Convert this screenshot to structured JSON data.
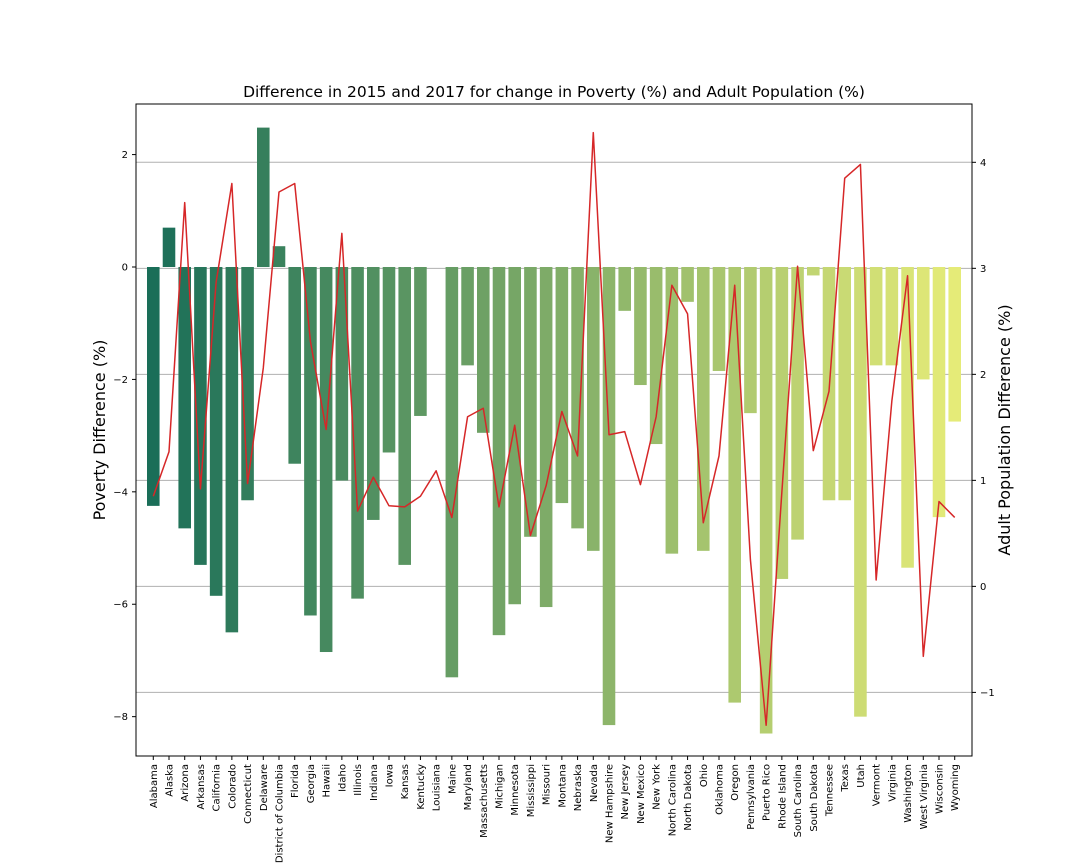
{
  "chart_data": {
    "type": "bar",
    "title": "Difference in 2015 and 2017 for change in Poverty (%) and Adult Population (%)",
    "xlabel": "",
    "ylabel": "Poverty Difference (%)",
    "y2label": "Adult Population Difference (%)",
    "ylim": [
      -8.7,
      2.9
    ],
    "y2lim": [
      -1.6,
      4.55
    ],
    "yticks": [
      -8,
      -6,
      -4,
      -2,
      0,
      2
    ],
    "y2ticks": [
      -1,
      0,
      1,
      2,
      3,
      4
    ],
    "grid": "horizontal lines at right-axis ticks",
    "colors": {
      "bar_start": "#1a6e58",
      "bar_end": "#e5eb78",
      "line": "#d62728",
      "grid": "#b0b0b0"
    },
    "categories": [
      "Alabama",
      "Alaska",
      "Arizona",
      "Arkansas",
      "California",
      "Colorado",
      "Connecticut",
      "Delaware",
      "District of Columbia",
      "Florida",
      "Georgia",
      "Hawaii",
      "Idaho",
      "Illinois",
      "Indiana",
      "Iowa",
      "Kansas",
      "Kentucky",
      "Louisiana",
      "Maine",
      "Maryland",
      "Massachusetts",
      "Michigan",
      "Minnesota",
      "Mississippi",
      "Missouri",
      "Montana",
      "Nebraska",
      "Nevada",
      "New Hampshire",
      "New Jersey",
      "New Mexico",
      "New York",
      "North Carolina",
      "North Dakota",
      "Ohio",
      "Oklahoma",
      "Oregon",
      "Pennsylvania",
      "Puerto Rico",
      "Rhode Island",
      "South Carolina",
      "South Dakota",
      "Tennessee",
      "Texas",
      "Utah",
      "Vermont",
      "Virginia",
      "Washington",
      "West Virginia",
      "Wisconsin",
      "Wyoming"
    ],
    "series": [
      {
        "values": [
          -4.25,
          0.7,
          -4.65,
          -5.3,
          -5.85,
          -6.5,
          -4.15,
          2.48,
          0.37,
          -3.5,
          -6.2,
          -6.85,
          -3.8,
          -5.9,
          -4.5,
          -3.3,
          -5.3,
          -2.65,
          0,
          -7.3,
          -1.75,
          -2.95,
          -6.55,
          -6.0,
          -4.8,
          -6.05,
          -4.2,
          -4.65,
          -5.05,
          -8.15,
          -0.78,
          -2.1,
          -3.15,
          -5.1,
          -0.62,
          -5.05,
          -1.85,
          -7.75,
          -2.6,
          -8.3,
          -5.55,
          -4.85,
          -0.15,
          -4.15,
          -4.15,
          -8.0,
          -1.75,
          -1.75,
          -5.35,
          -2.0,
          -4.45,
          -2.75
        ]
      },
      {
        "values": [
          0.85,
          1.27,
          3.62,
          0.92,
          2.87,
          3.8,
          0.97,
          2.06,
          3.72,
          3.8,
          2.31,
          1.48,
          3.33,
          0.71,
          1.03,
          0.76,
          0.75,
          0.85,
          1.09,
          0.65,
          1.6,
          1.68,
          0.75,
          1.52,
          0.48,
          0.95,
          1.65,
          1.23,
          4.28,
          1.43,
          1.46,
          0.96,
          1.6,
          2.84,
          2.57,
          0.6,
          1.23,
          2.84,
          0.25,
          -1.31,
          0.89,
          3.02,
          1.28,
          1.84,
          3.85,
          3.98,
          0.06,
          1.75,
          2.93,
          -0.66,
          0.8,
          0.65
        ]
      }
    ]
  }
}
